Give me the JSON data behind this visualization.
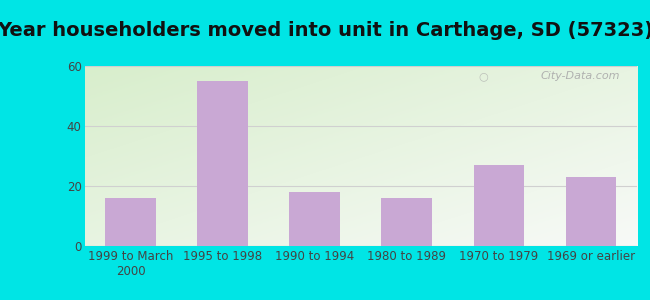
{
  "title": "Year householders moved into unit in Carthage, SD (57323)",
  "categories": [
    "1999 to March\n2000",
    "1995 to 1998",
    "1990 to 1994",
    "1980 to 1989",
    "1970 to 1979",
    "1969 or earlier"
  ],
  "values": [
    16,
    55,
    18,
    16,
    27,
    23
  ],
  "bar_color": "#c9a8d4",
  "background_outer": "#00e5e5",
  "ylim": [
    0,
    60
  ],
  "yticks": [
    0,
    20,
    40,
    60
  ],
  "title_fontsize": 14,
  "tick_fontsize": 8.5,
  "watermark": "City-Data.com",
  "grid_color": "#d0d0d0",
  "gradient_top_left": "#d8eecc",
  "gradient_bottom_right": "#f8faf8"
}
